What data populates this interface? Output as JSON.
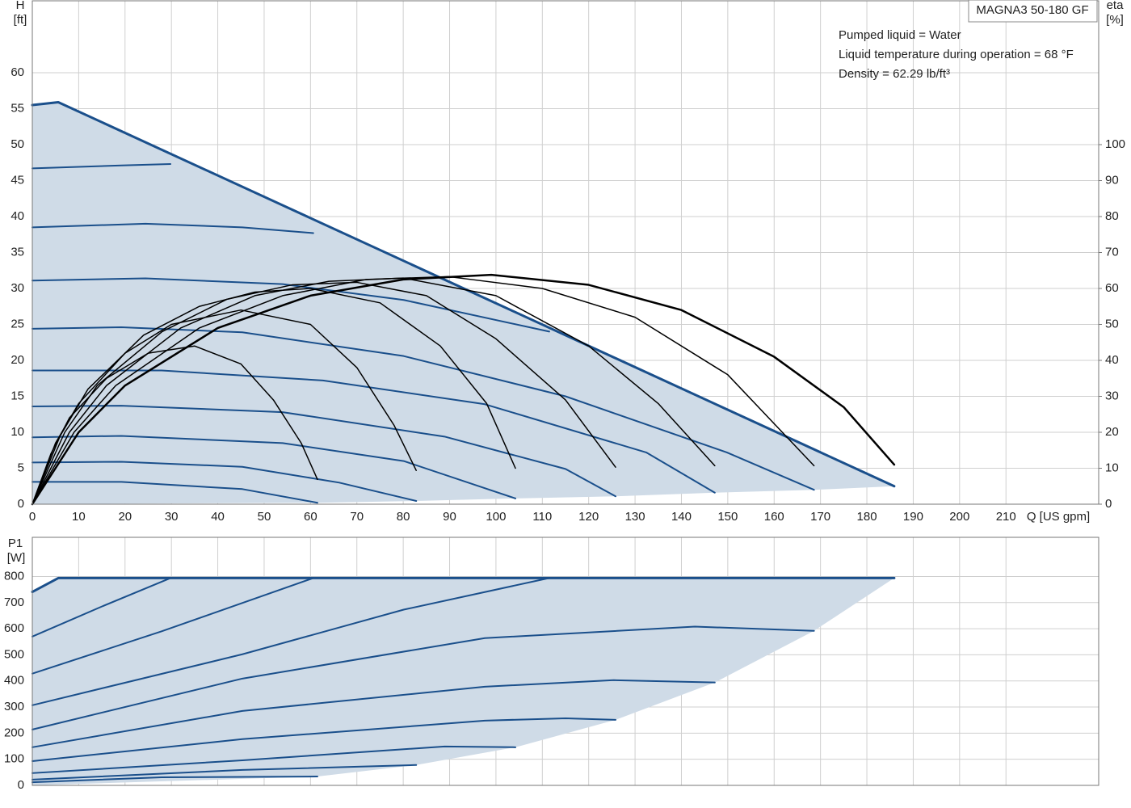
{
  "chart_data": [
    {
      "type": "line",
      "title": "MAGNA3 50-180 GF",
      "annotations": [
        "Pumped liquid = Water",
        "Liquid temperature during operation = 68 °F",
        "Density = 62.29 lb/ft³"
      ],
      "ylabel": [
        "H",
        "[ft]"
      ],
      "y2label": [
        "eta",
        "[%]"
      ],
      "xlabel": "Q [US gpm]",
      "xlim": [
        0,
        230
      ],
      "xticks": [
        0,
        10,
        20,
        30,
        40,
        50,
        60,
        70,
        80,
        90,
        100,
        110,
        120,
        130,
        140,
        150,
        160,
        170,
        180,
        190,
        200,
        210
      ],
      "ylim": [
        0,
        70
      ],
      "yticks": [
        0,
        5,
        10,
        15,
        20,
        25,
        30,
        35,
        40,
        45,
        50,
        55,
        60
      ],
      "y2lim": [
        0,
        140
      ],
      "y2ticks": [
        0,
        10,
        20,
        30,
        40,
        50,
        60,
        70,
        80,
        90,
        100
      ],
      "grid": true,
      "area_color": "#cfdbe7",
      "series": [
        {
          "color": "#1a4f8b",
          "width": 3,
          "x": [
            0,
            5.6,
            185.9
          ],
          "values": [
            55.5,
            55.9,
            2.5
          ]
        },
        {
          "color": "#1a4f8b",
          "width": 2,
          "x": [
            0,
            19.2,
            29.8
          ],
          "values": [
            46.7,
            47.1,
            47.3
          ]
        },
        {
          "color": "#1a4f8b",
          "width": 2,
          "x": [
            0,
            24.4,
            45.3,
            60.6
          ],
          "values": [
            38.5,
            39.0,
            38.5,
            37.7
          ]
        },
        {
          "color": "#1a4f8b",
          "width": 2,
          "x": [
            0,
            24.4,
            54,
            80.1,
            111.5
          ],
          "values": [
            31.1,
            31.4,
            30.6,
            28.4,
            24.0
          ]
        },
        {
          "color": "#1a4f8b",
          "width": 2,
          "x": [
            0,
            19.2,
            45.3,
            80.1,
            115,
            149.8,
            168.6
          ],
          "values": [
            24.4,
            24.6,
            23.9,
            20.6,
            15.0,
            7.2,
            2.0
          ]
        },
        {
          "color": "#1a4f8b",
          "width": 2,
          "x": [
            0,
            27.9,
            62.7,
            97.6,
            132.4,
            147.2
          ],
          "values": [
            18.6,
            18.6,
            17.2,
            13.9,
            7.2,
            1.6
          ]
        },
        {
          "color": "#1a4f8b",
          "width": 2,
          "x": [
            0,
            19.2,
            54,
            88.9,
            115,
            125.8
          ],
          "values": [
            13.6,
            13.7,
            12.8,
            9.4,
            4.9,
            1.1
          ]
        },
        {
          "color": "#1a4f8b",
          "width": 2,
          "x": [
            0,
            19.2,
            54,
            80.1,
            104.2
          ],
          "values": [
            9.3,
            9.5,
            8.5,
            6.0,
            0.8
          ]
        },
        {
          "color": "#1a4f8b",
          "width": 2,
          "x": [
            0,
            19.2,
            45.3,
            66.2,
            82.8
          ],
          "values": [
            5.8,
            5.9,
            5.2,
            3.0,
            0.45
          ]
        },
        {
          "color": "#1a4f8b",
          "width": 2,
          "x": [
            0,
            19.2,
            45.3,
            61.5
          ],
          "values": [
            3.1,
            3.1,
            2.1,
            0.2
          ]
        },
        {
          "color": "#000000",
          "width": 2.5,
          "axis": "y2",
          "x": [
            0,
            10,
            20,
            40,
            60,
            80,
            99,
            120,
            140,
            160,
            175,
            185.9
          ],
          "values": [
            0,
            20,
            33,
            49,
            58,
            62.5,
            63.8,
            61,
            54,
            41,
            27,
            11
          ]
        },
        {
          "color": "#000000",
          "width": 1.5,
          "axis": "y2",
          "x": [
            0,
            9,
            18,
            36,
            54,
            72,
            89.7,
            110,
            130,
            150,
            168.6
          ],
          "values": [
            0,
            20,
            33,
            49,
            58,
            62.5,
            63.3,
            60,
            52,
            36,
            10.7
          ]
        },
        {
          "color": "#000000",
          "width": 1.5,
          "axis": "y2",
          "x": [
            0,
            8,
            16,
            32,
            48,
            64,
            80,
            100,
            120,
            135,
            147.2
          ],
          "values": [
            0,
            20,
            33,
            49,
            58,
            62,
            62.9,
            58,
            44,
            28,
            10.7
          ]
        },
        {
          "color": "#000000",
          "width": 1.5,
          "axis": "y2",
          "x": [
            0,
            7,
            14,
            28,
            42,
            56,
            70,
            85,
            100,
            115,
            125.8
          ],
          "values": [
            0,
            20,
            33,
            48,
            57,
            61,
            61.7,
            58,
            46,
            29,
            10.3
          ]
        },
        {
          "color": "#000000",
          "width": 1.5,
          "axis": "y2",
          "x": [
            0,
            6,
            12,
            24,
            36,
            48,
            60,
            75,
            88,
            98,
            104.2
          ],
          "values": [
            0,
            19,
            32,
            47,
            55,
            59,
            60,
            56,
            44,
            28,
            10
          ]
        },
        {
          "color": "#000000",
          "width": 1.5,
          "axis": "y2",
          "x": [
            0,
            5,
            10,
            20,
            30,
            45,
            60,
            70,
            78,
            82.8
          ],
          "values": [
            0,
            17,
            28,
            42,
            50,
            54,
            50,
            38,
            22,
            9.4
          ]
        },
        {
          "color": "#000000",
          "width": 1.5,
          "axis": "y2",
          "x": [
            0,
            4,
            8,
            16,
            25,
            35,
            45,
            52,
            58,
            61.5
          ],
          "values": [
            0,
            14,
            24,
            35,
            42,
            44,
            39,
            29,
            17,
            6.9
          ]
        }
      ]
    },
    {
      "type": "line",
      "ylabel": [
        "P1",
        "[W]"
      ],
      "xlim": [
        0,
        230
      ],
      "xticks": [
        0,
        10,
        20,
        30,
        40,
        50,
        60,
        70,
        80,
        90,
        100,
        110,
        120,
        130,
        140,
        150,
        160,
        170,
        180,
        190,
        200,
        210
      ],
      "ylim": [
        0,
        950
      ],
      "yticks": [
        0,
        100,
        200,
        300,
        400,
        500,
        600,
        700,
        800
      ],
      "grid": true,
      "area_color": "#cfdbe7",
      "series": [
        {
          "color": "#1a4f8b",
          "width": 3,
          "x": [
            0,
            5.6,
            185.9
          ],
          "values": [
            741,
            794,
            794
          ]
        },
        {
          "color": "#1a4f8b",
          "width": 2,
          "x": [
            0,
            15,
            29.8
          ],
          "values": [
            570,
            685,
            794
          ]
        },
        {
          "color": "#1a4f8b",
          "width": 2,
          "x": [
            0,
            27.9,
            60.6
          ],
          "values": [
            428,
            590,
            794
          ]
        },
        {
          "color": "#1a4f8b",
          "width": 2,
          "x": [
            0,
            45.3,
            80.1,
            111.5
          ],
          "values": [
            307,
            502,
            673,
            794
          ]
        },
        {
          "color": "#1a4f8b",
          "width": 2,
          "x": [
            0,
            45.3,
            97.6,
            142.9,
            168.6
          ],
          "values": [
            214,
            409,
            564,
            608,
            592
          ]
        },
        {
          "color": "#1a4f8b",
          "width": 2,
          "x": [
            0,
            45.3,
            97.6,
            125.4,
            147.2
          ],
          "values": [
            146,
            285,
            378,
            403,
            394
          ]
        },
        {
          "color": "#1a4f8b",
          "width": 2,
          "x": [
            0,
            45.3,
            97.6,
            115,
            125.8
          ],
          "values": [
            93,
            177,
            248,
            257,
            251
          ]
        },
        {
          "color": "#1a4f8b",
          "width": 2,
          "x": [
            0,
            45.3,
            88.9,
            104.2
          ],
          "values": [
            47,
            96,
            149,
            146
          ]
        },
        {
          "color": "#1a4f8b",
          "width": 2,
          "x": [
            0,
            45.3,
            82.8
          ],
          "values": [
            22,
            59,
            78
          ]
        },
        {
          "color": "#1a4f8b",
          "width": 2,
          "x": [
            0,
            27.9,
            61.5
          ],
          "values": [
            12,
            31,
            34
          ]
        }
      ]
    }
  ]
}
